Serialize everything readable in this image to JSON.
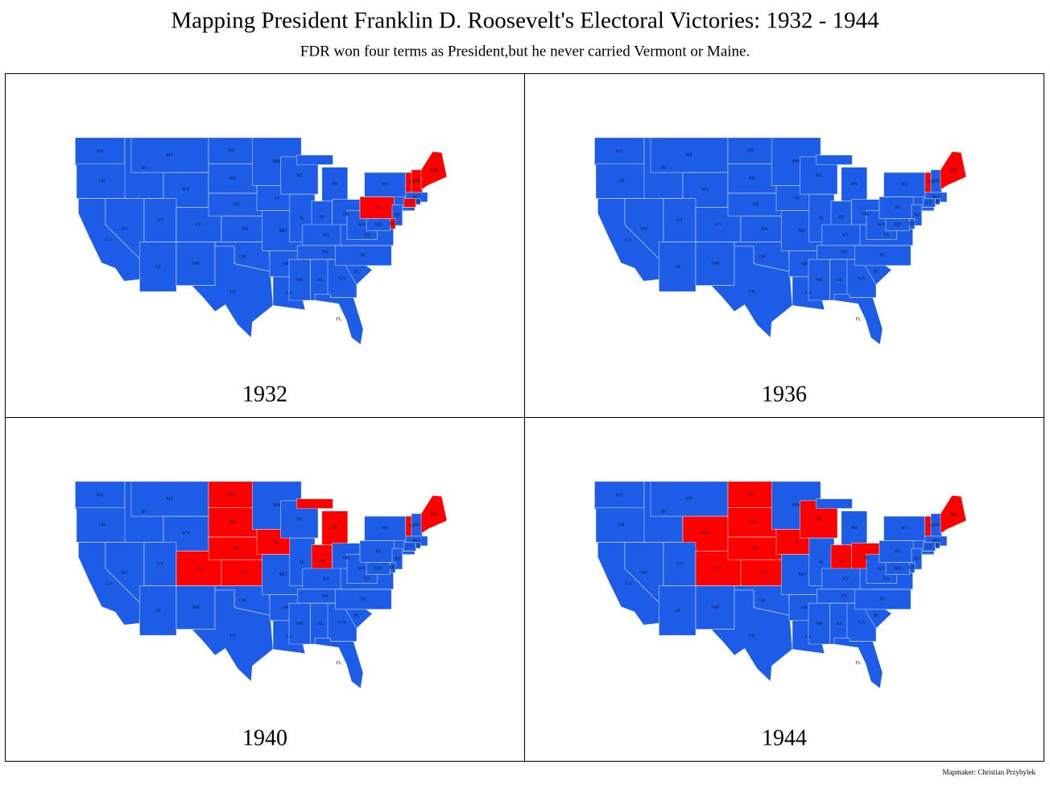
{
  "header": {
    "title": "Mapping President Franklin D. Roosevelt's Electoral Victories: 1932 - 1944",
    "subtitle": "FDR won four terms as President,but he never carried Vermont or Maine."
  },
  "colors": {
    "democrat": "#1d5ce6",
    "republican": "#ff0000"
  },
  "states": [
    "WA",
    "OR",
    "CA",
    "NV",
    "ID",
    "MT",
    "WY",
    "UT",
    "CO",
    "AZ",
    "NM",
    "ND",
    "SD",
    "NE",
    "KS",
    "OK",
    "TX",
    "MN",
    "IA",
    "MO",
    "AR",
    "LA",
    "WI",
    "IL",
    "MI",
    "IN",
    "OH",
    "KY",
    "TN",
    "MS",
    "AL",
    "GA",
    "FL",
    "SC",
    "NC",
    "VA",
    "WV",
    "PA",
    "NY",
    "NJ",
    "DE",
    "MD",
    "VT",
    "NH",
    "MA",
    "CT",
    "RI",
    "ME"
  ],
  "maps": [
    {
      "year": "1932",
      "republican": [
        "ME",
        "VT",
        "NH",
        "CT",
        "PA",
        "DE"
      ]
    },
    {
      "year": "1936",
      "republican": [
        "ME",
        "VT"
      ]
    },
    {
      "year": "1940",
      "republican": [
        "ME",
        "VT",
        "MI",
        "IN",
        "IA",
        "KS",
        "NE",
        "SD",
        "ND",
        "CO"
      ]
    },
    {
      "year": "1944",
      "republican": [
        "ME",
        "VT",
        "OH",
        "IN",
        "WI",
        "IA",
        "KS",
        "NE",
        "SD",
        "ND",
        "CO",
        "WY"
      ]
    }
  ],
  "footer": {
    "credit": "Mapmaker: Christian Przybylek"
  }
}
